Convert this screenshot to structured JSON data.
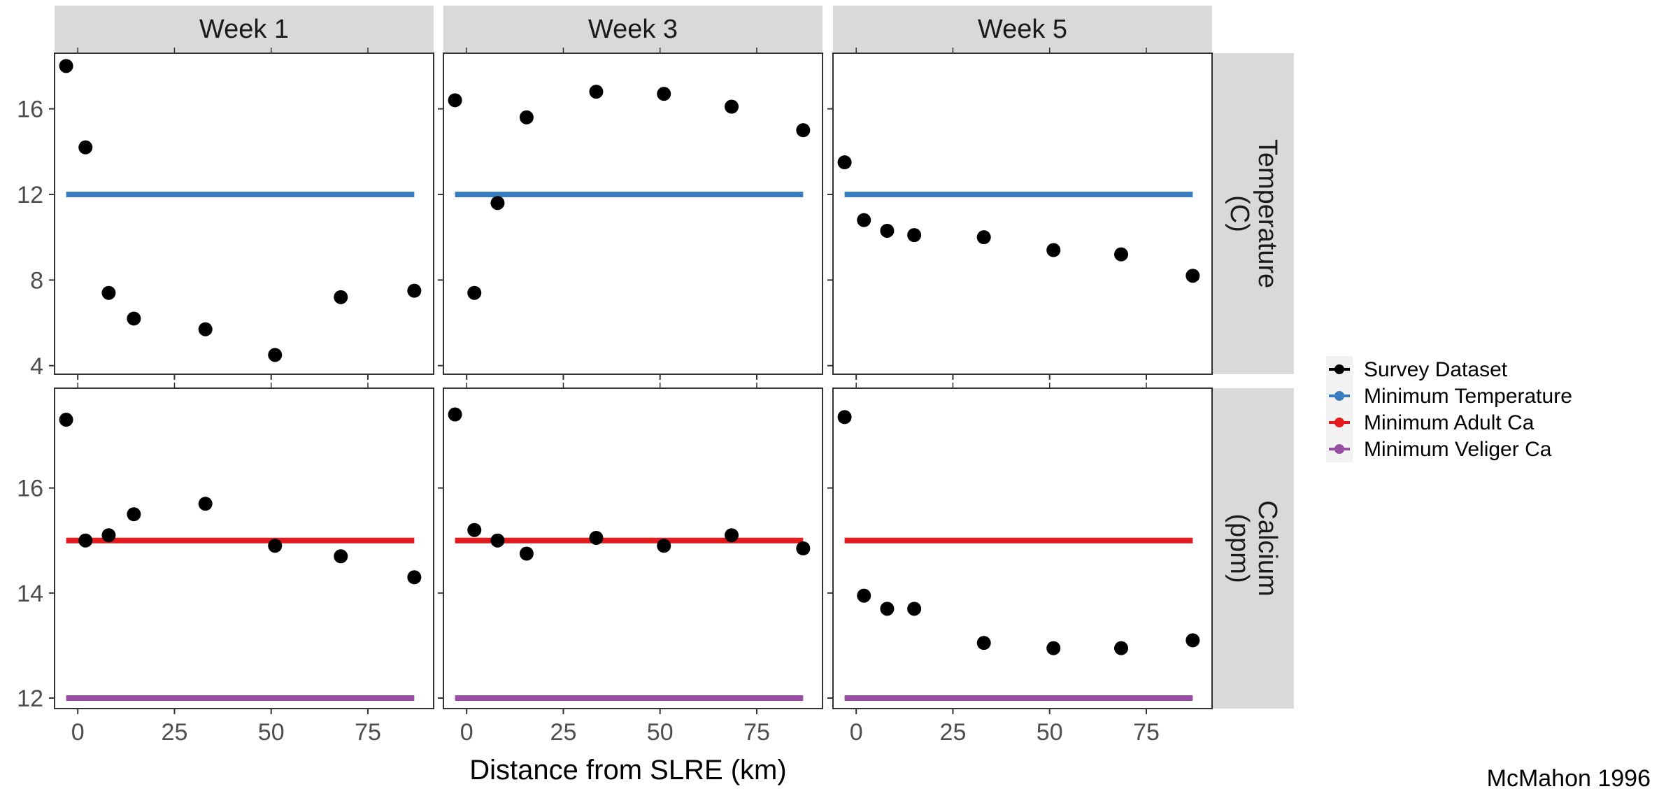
{
  "chart_data": {
    "type": "scatter",
    "xlabel": "Distance from SLRE (km)",
    "x_ticks": [
      0,
      25,
      50,
      75
    ],
    "xlim": [
      -6,
      92
    ],
    "columns": [
      "Week 1",
      "Week 3",
      "Week 5"
    ],
    "rows": [
      {
        "label": "Temperature\n(C)",
        "label_lines": [
          "Temperature",
          "(C)"
        ],
        "ylim": [
          3.6,
          18.6
        ],
        "y_ticks": [
          4,
          8,
          12,
          16
        ]
      },
      {
        "label": "Calcium\n(ppm)",
        "label_lines": [
          "Calcium",
          "(ppm)"
        ],
        "ylim": [
          11.8,
          17.9
        ],
        "y_ticks": [
          12,
          14,
          16
        ]
      }
    ],
    "colors": {
      "survey": "#000000",
      "min_temperature": "#3a7dbf",
      "min_adult_ca": "#e41a1c",
      "min_veliger_ca": "#984ea3"
    },
    "legend": [
      {
        "name": "Survey Dataset",
        "color": "#000000"
      },
      {
        "name": "Minimum Temperature",
        "color": "#3a7dbf"
      },
      {
        "name": "Minimum Adult Ca",
        "color": "#e41a1c"
      },
      {
        "name": "Minimum Veliger Ca",
        "color": "#984ea3"
      }
    ],
    "reference_lines": [
      {
        "row": 0,
        "y": 12,
        "color": "#3a7dbf",
        "x_range": [
          -3,
          87
        ]
      },
      {
        "row": 1,
        "y": 15,
        "color": "#e41a1c",
        "x_range": [
          -3,
          87
        ]
      },
      {
        "row": 1,
        "y": 12,
        "color": "#984ea3",
        "x_range": [
          -3,
          87
        ]
      }
    ],
    "points": [
      {
        "row": 0,
        "col": 0,
        "x": [
          -3,
          2,
          8,
          14.5,
          33,
          51,
          68,
          87
        ],
        "y": [
          18,
          14.2,
          7.4,
          6.2,
          5.7,
          4.5,
          7.2,
          7.5
        ]
      },
      {
        "row": 0,
        "col": 1,
        "x": [
          -3,
          2,
          8,
          15.5,
          33.5,
          51,
          68.5,
          87
        ],
        "y": [
          16.4,
          7.4,
          11.6,
          15.6,
          16.8,
          16.7,
          16.1,
          15.0
        ]
      },
      {
        "row": 0,
        "col": 2,
        "x": [
          -3,
          2,
          8,
          15,
          33,
          51,
          68.5,
          87
        ],
        "y": [
          13.5,
          10.8,
          10.3,
          10.1,
          10.0,
          9.4,
          9.2,
          8.2
        ]
      },
      {
        "row": 1,
        "col": 0,
        "x": [
          -3,
          2,
          8,
          14.5,
          33,
          51,
          68,
          87
        ],
        "y": [
          17.3,
          15.0,
          15.1,
          15.5,
          15.7,
          14.9,
          14.7,
          14.3
        ]
      },
      {
        "row": 1,
        "col": 1,
        "x": [
          -3,
          2,
          8,
          15.5,
          33.5,
          51,
          68.5,
          87
        ],
        "y": [
          17.4,
          15.2,
          15.0,
          14.75,
          15.05,
          14.9,
          15.1,
          14.85
        ]
      },
      {
        "row": 1,
        "col": 2,
        "x": [
          -3,
          2,
          8,
          15,
          33,
          51,
          68.5,
          87
        ],
        "y": [
          17.35,
          13.95,
          13.7,
          13.7,
          13.05,
          12.95,
          12.95,
          13.1
        ]
      }
    ]
  },
  "credit": "McMahon 1996"
}
